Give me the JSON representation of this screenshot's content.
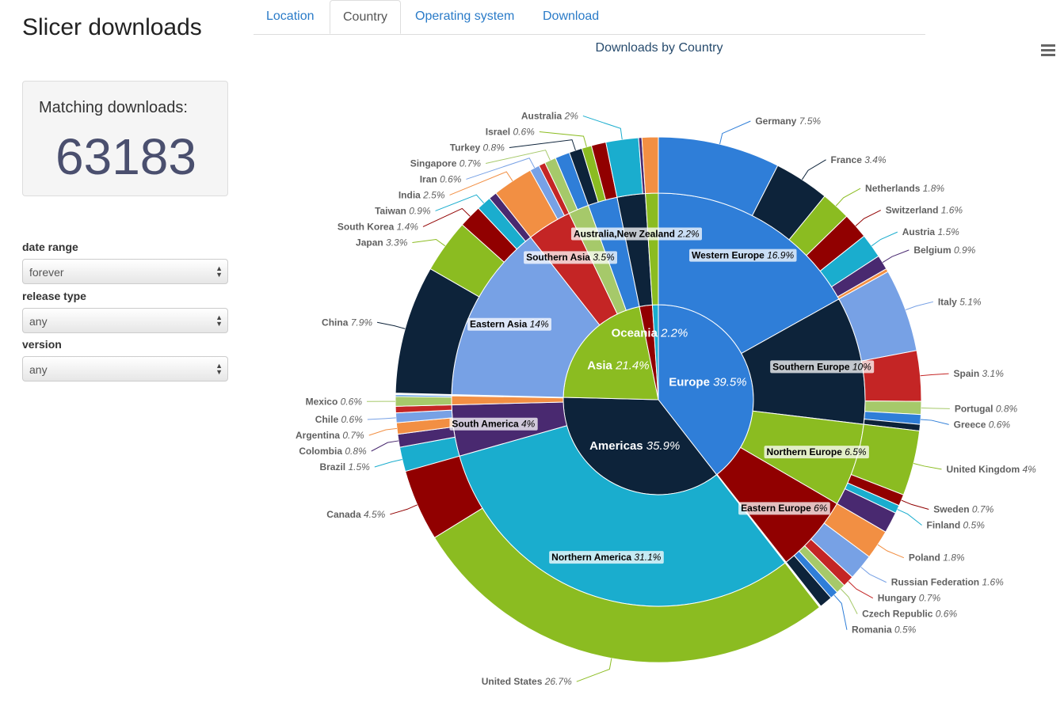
{
  "app": {
    "title": "Slicer downloads"
  },
  "summary": {
    "label": "Matching downloads:",
    "value": "63183"
  },
  "filters": [
    {
      "label": "date range",
      "value": "forever"
    },
    {
      "label": "release type",
      "value": "any"
    },
    {
      "label": "version",
      "value": "any"
    }
  ],
  "tabs": [
    {
      "label": "Location"
    },
    {
      "label": "Country",
      "active": true
    },
    {
      "label": "Operating system"
    },
    {
      "label": "Download"
    }
  ],
  "menu_icon": "hamburger-icon",
  "chart_data": {
    "type": "sunburst",
    "title": "Downloads by Country",
    "unit": "%",
    "palette": [
      "#2f7ed8",
      "#0d233a",
      "#8bbc21",
      "#910000",
      "#1aadce",
      "#492970",
      "#f28f43",
      "#77a1e5",
      "#c42525",
      "#a6c96a"
    ],
    "continents": [
      {
        "name": "Europe",
        "value": 39.5,
        "regions": [
          {
            "name": "Western Europe",
            "value": 16.9,
            "countries": [
              {
                "name": "Germany",
                "value": 7.5
              },
              {
                "name": "France",
                "value": 3.4
              },
              {
                "name": "Netherlands",
                "value": 1.8
              },
              {
                "name": "Switzerland",
                "value": 1.6
              },
              {
                "name": "Austria",
                "value": 1.5
              },
              {
                "name": "Belgium",
                "value": 0.9
              }
            ]
          },
          {
            "name": "Southern Europe",
            "value": 10.0,
            "countries": [
              {
                "name": "Italy",
                "value": 5.1
              },
              {
                "name": "Spain",
                "value": 3.1
              },
              {
                "name": "Portugal",
                "value": 0.8
              },
              {
                "name": "Greece",
                "value": 0.6
              }
            ]
          },
          {
            "name": "Northern Europe",
            "value": 6.5,
            "countries": [
              {
                "name": "United Kingdom",
                "value": 4.0
              },
              {
                "name": "Sweden",
                "value": 0.7
              },
              {
                "name": "Finland",
                "value": 0.5
              }
            ]
          },
          {
            "name": "Eastern Europe",
            "value": 6.0,
            "countries": [
              {
                "name": "Poland",
                "value": 1.8
              },
              {
                "name": "Russian Federation",
                "value": 1.6
              },
              {
                "name": "Hungary",
                "value": 0.7
              },
              {
                "name": "Czech Republic",
                "value": 0.6
              },
              {
                "name": "Romania",
                "value": 0.5
              }
            ]
          }
        ]
      },
      {
        "name": "Americas",
        "value": 35.9,
        "regions": [
          {
            "name": "Northern America",
            "value": 31.1,
            "countries": [
              {
                "name": "United States",
                "value": 26.7
              },
              {
                "name": "Canada",
                "value": 4.5
              }
            ]
          },
          {
            "name": "South America",
            "value": 4.0,
            "countries": [
              {
                "name": "Brazil",
                "value": 1.5
              },
              {
                "name": "Colombia",
                "value": 0.8
              },
              {
                "name": "Argentina",
                "value": 0.7
              },
              {
                "name": "Chile",
                "value": 0.6
              }
            ]
          },
          {
            "name": "",
            "value": 0.7,
            "countries": [
              {
                "name": "Mexico",
                "value": 0.6
              }
            ]
          }
        ]
      },
      {
        "name": "Asia",
        "value": 21.4,
        "regions": [
          {
            "name": "Eastern Asia",
            "value": 14.0,
            "countries": [
              {
                "name": "China",
                "value": 7.9
              },
              {
                "name": "Japan",
                "value": 3.3
              },
              {
                "name": "South Korea",
                "value": 1.4
              },
              {
                "name": "Taiwan",
                "value": 0.9
              }
            ]
          },
          {
            "name": "Southern Asia",
            "value": 3.5,
            "countries": [
              {
                "name": "India",
                "value": 2.5
              },
              {
                "name": "Iran",
                "value": 0.6
              }
            ]
          },
          {
            "name": "",
            "value": 1.6,
            "countries": [
              {
                "name": "Singapore",
                "value": 0.7
              }
            ]
          },
          {
            "name": "",
            "value": 2.3,
            "countries": [
              {
                "name": "Turkey",
                "value": 0.8
              },
              {
                "name": "Israel",
                "value": 0.6
              }
            ]
          }
        ]
      },
      {
        "name": "Oceania",
        "value": 2.2,
        "regions": [
          {
            "name": "Australia,New Zealand",
            "value": 2.2,
            "countries": [
              {
                "name": "Australia",
                "value": 2.0
              }
            ]
          }
        ]
      }
    ]
  }
}
